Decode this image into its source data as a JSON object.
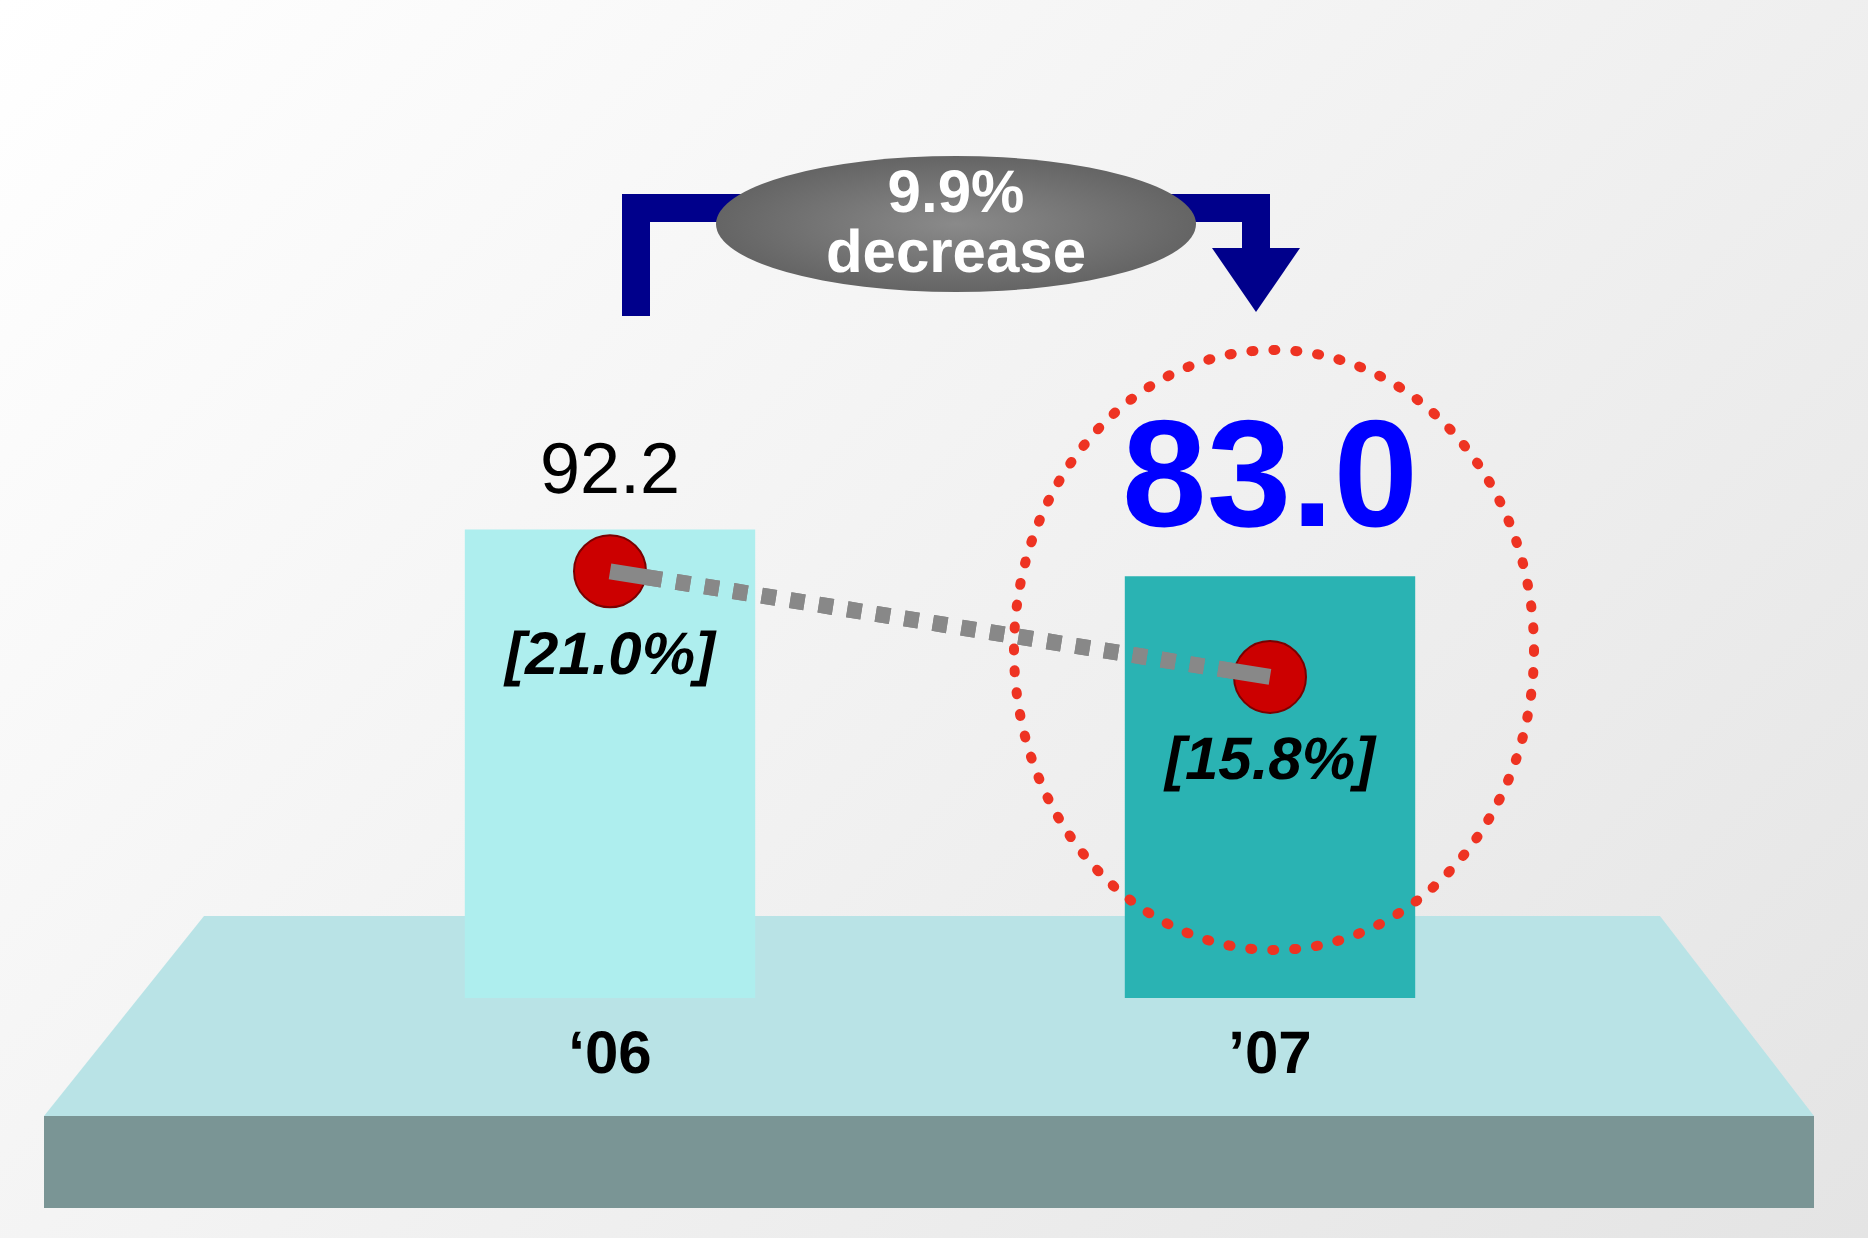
{
  "chart_data": {
    "type": "bar",
    "categories": [
      "‘06",
      "’07"
    ],
    "legend": false,
    "annotations": [
      "9.9% decrease"
    ],
    "series": [
      {
        "colors": [
          "#aeeeee",
          "#2ab3b3"
        ],
        "values": [
          92.2,
          83.0
        ],
        "value_labels": [
          "92.2",
          "83.0"
        ]
      },
      {
        "type": "line",
        "axis": "y2",
        "color": "#cc0000",
        "marker": "circle",
        "line_style": "dashed",
        "values": [
          21.0,
          15.8
        ],
        "value_labels": [
          "[21.0%]",
          "[15.8%]"
        ]
      }
    ]
  }
}
